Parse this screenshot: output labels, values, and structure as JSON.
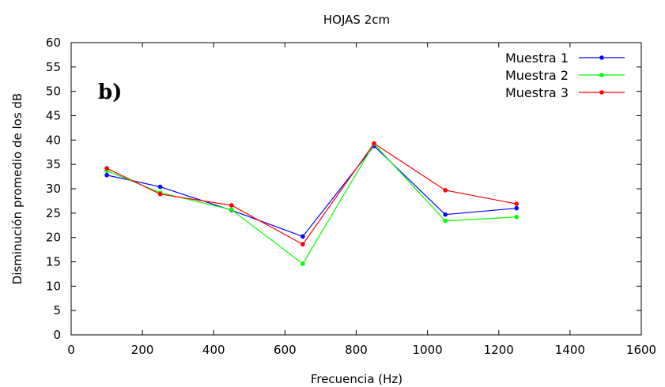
{
  "chart_data": {
    "type": "line",
    "title": "HOJAS 2cm",
    "panel_label": "b)",
    "xlabel": "Frecuencia (Hz)",
    "ylabel": "Disminución promedio de los dB",
    "xlim": [
      0,
      1600
    ],
    "ylim": [
      0,
      60
    ],
    "x_ticks": [
      0,
      200,
      400,
      600,
      800,
      1000,
      1200,
      1400,
      1600
    ],
    "y_ticks": [
      0,
      5,
      10,
      15,
      20,
      25,
      30,
      35,
      40,
      45,
      50,
      55,
      60
    ],
    "grid": false,
    "legend_position": "top-right",
    "x": [
      100,
      250,
      450,
      650,
      850,
      1050,
      1250
    ],
    "series": [
      {
        "name": "Muestra 1",
        "color": "#0000ff",
        "values": [
          32.8,
          30.4,
          25.6,
          20.2,
          38.8,
          24.7,
          26.0
        ]
      },
      {
        "name": "Muestra 2",
        "color": "#00ff00",
        "values": [
          33.7,
          29.2,
          25.7,
          14.6,
          39.2,
          23.4,
          24.2
        ]
      },
      {
        "name": "Muestra 3",
        "color": "#ff0000",
        "values": [
          34.2,
          28.9,
          26.6,
          18.6,
          39.3,
          29.7,
          26.9
        ]
      }
    ]
  }
}
